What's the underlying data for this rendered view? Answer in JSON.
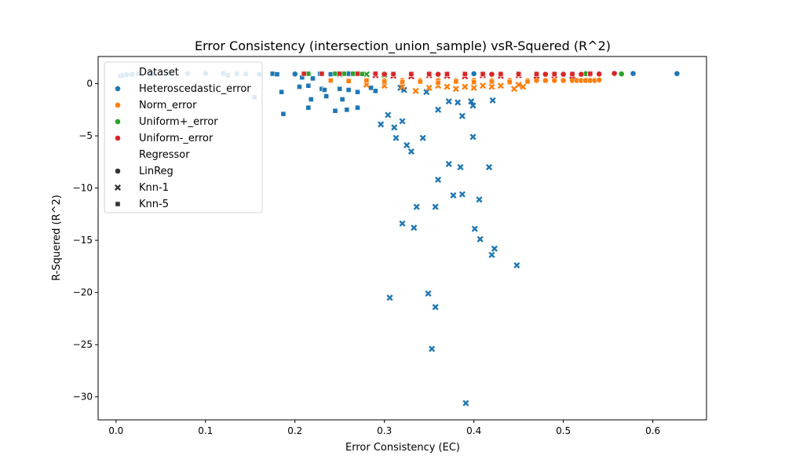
{
  "chart_data": {
    "type": "scatter",
    "title": "Error Consistency (intersection_union_sample) vsR-Squered (R^2)",
    "xlabel": "Error Consistency (EC)",
    "ylabel": "R-Squered (R^2)",
    "xlim": [
      -0.02,
      0.66
    ],
    "ylim": [
      -32.2,
      2.6
    ],
    "xticks": [
      0.0,
      0.1,
      0.2,
      0.3,
      0.4,
      0.5,
      0.6
    ],
    "xtick_labels": [
      "0.0",
      "0.1",
      "0.2",
      "0.3",
      "0.4",
      "0.5",
      "0.6"
    ],
    "yticks": [
      0,
      -5,
      -10,
      -15,
      -20,
      -25,
      -30
    ],
    "ytick_labels": [
      "0",
      "−5",
      "−10",
      "−15",
      "−20",
      "−25",
      "−30"
    ],
    "grid": false,
    "legend": {
      "placement": "upper-left",
      "hue_title": "Dataset",
      "style_title": "Regressor",
      "hue_entries": [
        {
          "label": "Heteroscedastic_error",
          "color": "#1f77b4"
        },
        {
          "label": "Norm_error",
          "color": "#ff7f0e"
        },
        {
          "label": "Uniform+_error",
          "color": "#2ca02c"
        },
        {
          "label": "Uniform-_error",
          "color": "#d62728"
        }
      ],
      "style_entries": [
        {
          "label": "LinReg",
          "marker": "circle"
        },
        {
          "label": "Knn-1",
          "marker": "x"
        },
        {
          "label": "Knn-5",
          "marker": "square"
        }
      ]
    },
    "series": [
      {
        "dataset": "Heteroscedastic_error",
        "regressor": "LinReg",
        "color": "#1f77b4",
        "marker": "circle",
        "points": [
          [
            0.005,
            0.75
          ],
          [
            0.008,
            0.8
          ],
          [
            0.012,
            0.85
          ],
          [
            0.018,
            0.9
          ],
          [
            0.025,
            0.95
          ],
          [
            0.04,
            0.95
          ],
          [
            0.06,
            0.96
          ],
          [
            0.08,
            0.97
          ],
          [
            0.1,
            0.97
          ],
          [
            0.12,
            0.97
          ],
          [
            0.16,
            0.9
          ],
          [
            0.2,
            0.92
          ],
          [
            0.23,
            0.95
          ],
          [
            0.26,
            0.95
          ],
          [
            0.3,
            0.95
          ],
          [
            0.35,
            0.95
          ],
          [
            0.4,
            0.95
          ],
          [
            0.45,
            0.95
          ],
          [
            0.5,
            0.95
          ],
          [
            0.53,
            0.96
          ],
          [
            0.578,
            0.97
          ],
          [
            0.627,
            0.96
          ]
        ]
      },
      {
        "dataset": "Heteroscedastic_error",
        "regressor": "Knn-1",
        "color": "#1f77b4",
        "marker": "x",
        "points": [
          [
            0.296,
            -3.9
          ],
          [
            0.304,
            -3.0
          ],
          [
            0.311,
            -4.2
          ],
          [
            0.313,
            -5.2
          ],
          [
            0.318,
            -0.4
          ],
          [
            0.32,
            -3.6
          ],
          [
            0.322,
            -0.6
          ],
          [
            0.325,
            -5.9
          ],
          [
            0.33,
            -6.5
          ],
          [
            0.336,
            -11.8
          ],
          [
            0.32,
            -13.4
          ],
          [
            0.333,
            -13.8
          ],
          [
            0.306,
            -20.5
          ],
          [
            0.343,
            -5.2
          ],
          [
            0.349,
            -20.1
          ],
          [
            0.347,
            -0.8
          ],
          [
            0.357,
            -21.4
          ],
          [
            0.353,
            -25.4
          ],
          [
            0.357,
            -11.8
          ],
          [
            0.36,
            -9.2
          ],
          [
            0.36,
            -2.5
          ],
          [
            0.372,
            -1.7
          ],
          [
            0.372,
            -7.7
          ],
          [
            0.377,
            -10.7
          ],
          [
            0.382,
            -1.8
          ],
          [
            0.385,
            -8.0
          ],
          [
            0.387,
            -3.1
          ],
          [
            0.387,
            -10.6
          ],
          [
            0.391,
            -30.6
          ],
          [
            0.397,
            -1.7
          ],
          [
            0.399,
            -2.1
          ],
          [
            0.399,
            -5.1
          ],
          [
            0.401,
            -13.9
          ],
          [
            0.406,
            -11.1
          ],
          [
            0.407,
            -14.9
          ],
          [
            0.417,
            -8.0
          ],
          [
            0.421,
            -1.6
          ],
          [
            0.42,
            -16.4
          ],
          [
            0.423,
            -15.8
          ],
          [
            0.448,
            -17.4
          ]
        ]
      },
      {
        "dataset": "Heteroscedastic_error",
        "regressor": "Knn-5",
        "color": "#1f77b4",
        "marker": "square",
        "points": [
          [
            0.125,
            0.8
          ],
          [
            0.135,
            0.95
          ],
          [
            0.145,
            0.92
          ],
          [
            0.155,
            -1.3
          ],
          [
            0.175,
            0.95
          ],
          [
            0.18,
            0.9
          ],
          [
            0.185,
            -0.8
          ],
          [
            0.187,
            -2.9
          ],
          [
            0.205,
            -0.3
          ],
          [
            0.208,
            0.6
          ],
          [
            0.215,
            -0.2
          ],
          [
            0.215,
            -2.3
          ],
          [
            0.218,
            -1.5
          ],
          [
            0.22,
            0.5
          ],
          [
            0.228,
            0.95
          ],
          [
            0.23,
            -0.5
          ],
          [
            0.233,
            -0.6
          ],
          [
            0.235,
            -1.2
          ],
          [
            0.24,
            0.9
          ],
          [
            0.245,
            -2.6
          ],
          [
            0.25,
            -0.5
          ],
          [
            0.253,
            -1.5
          ],
          [
            0.258,
            -2.5
          ],
          [
            0.26,
            -0.6
          ],
          [
            0.265,
            0.9
          ],
          [
            0.27,
            -0.8
          ],
          [
            0.27,
            -2.3
          ],
          [
            0.285,
            -0.4
          ],
          [
            0.29,
            -0.7
          ]
        ]
      },
      {
        "dataset": "Norm_error",
        "regressor": "LinReg",
        "color": "#ff7f0e",
        "marker": "circle",
        "points": [
          [
            0.3,
            0.3
          ],
          [
            0.32,
            0.3
          ],
          [
            0.34,
            0.3
          ],
          [
            0.36,
            0.3
          ],
          [
            0.38,
            0.3
          ],
          [
            0.4,
            0.3
          ],
          [
            0.42,
            0.3
          ],
          [
            0.44,
            0.3
          ],
          [
            0.46,
            0.3
          ],
          [
            0.47,
            0.3
          ],
          [
            0.48,
            0.3
          ],
          [
            0.49,
            0.3
          ],
          [
            0.5,
            0.3
          ],
          [
            0.51,
            0.3
          ],
          [
            0.515,
            0.3
          ],
          [
            0.52,
            0.3
          ],
          [
            0.525,
            0.3
          ],
          [
            0.53,
            0.3
          ],
          [
            0.535,
            0.3
          ],
          [
            0.54,
            0.35
          ]
        ]
      },
      {
        "dataset": "Norm_error",
        "regressor": "Knn-1",
        "color": "#ff7f0e",
        "marker": "x",
        "points": [
          [
            0.28,
            -0.1
          ],
          [
            0.3,
            -0.2
          ],
          [
            0.32,
            -0.3
          ],
          [
            0.335,
            -0.7
          ],
          [
            0.35,
            -0.4
          ],
          [
            0.36,
            -0.2
          ],
          [
            0.37,
            -0.3
          ],
          [
            0.38,
            -0.5
          ],
          [
            0.39,
            -0.3
          ],
          [
            0.4,
            -0.4
          ],
          [
            0.41,
            -0.2
          ],
          [
            0.42,
            -0.3
          ],
          [
            0.43,
            -0.2
          ],
          [
            0.445,
            -0.5
          ],
          [
            0.45,
            -0.1
          ],
          [
            0.455,
            -0.3
          ]
        ]
      },
      {
        "dataset": "Norm_error",
        "regressor": "Knn-5",
        "color": "#ff7f0e",
        "marker": "square",
        "points": [
          [
            0.24,
            0.3
          ],
          [
            0.26,
            0.25
          ],
          [
            0.28,
            0.3
          ],
          [
            0.3,
            0.2
          ],
          [
            0.32,
            0.15
          ],
          [
            0.34,
            0.2
          ],
          [
            0.36,
            0.1
          ],
          [
            0.38,
            0.2
          ],
          [
            0.4,
            0.15
          ],
          [
            0.42,
            0.2
          ],
          [
            0.44,
            0.15
          ],
          [
            0.46,
            0.2
          ]
        ]
      },
      {
        "dataset": "Uniform+_error",
        "regressor": "LinReg",
        "color": "#2ca02c",
        "marker": "circle",
        "points": [
          [
            0.525,
            0.95
          ],
          [
            0.565,
            0.93
          ]
        ]
      },
      {
        "dataset": "Uniform+_error",
        "regressor": "Knn-1",
        "color": "#2ca02c",
        "marker": "x",
        "points": [
          [
            0.25,
            0.9
          ],
          [
            0.28,
            0.9
          ],
          [
            0.3,
            0.85
          ]
        ]
      },
      {
        "dataset": "Uniform+_error",
        "regressor": "Knn-5",
        "color": "#2ca02c",
        "marker": "square",
        "points": [
          [
            0.215,
            0.95
          ],
          [
            0.23,
            0.95
          ],
          [
            0.245,
            0.95
          ],
          [
            0.255,
            0.95
          ],
          [
            0.265,
            0.95
          ],
          [
            0.275,
            0.93
          ]
        ]
      },
      {
        "dataset": "Uniform-_error",
        "regressor": "LinReg",
        "color": "#d62728",
        "marker": "circle",
        "points": [
          [
            0.3,
            0.9
          ],
          [
            0.33,
            0.9
          ],
          [
            0.36,
            0.9
          ],
          [
            0.39,
            0.9
          ],
          [
            0.42,
            0.9
          ],
          [
            0.45,
            0.9
          ],
          [
            0.48,
            0.9
          ],
          [
            0.5,
            0.9
          ],
          [
            0.51,
            0.9
          ],
          [
            0.52,
            0.9
          ],
          [
            0.53,
            0.9
          ],
          [
            0.54,
            0.92
          ],
          [
            0.557,
            0.98
          ]
        ]
      },
      {
        "dataset": "Uniform-_error",
        "regressor": "Knn-1",
        "color": "#d62728",
        "marker": "x",
        "points": [
          [
            0.29,
            0.8
          ],
          [
            0.31,
            0.75
          ],
          [
            0.33,
            0.7
          ],
          [
            0.35,
            0.8
          ],
          [
            0.37,
            0.75
          ],
          [
            0.39,
            0.7
          ],
          [
            0.41,
            0.8
          ],
          [
            0.43,
            0.75
          ],
          [
            0.45,
            0.8
          ],
          [
            0.47,
            0.75
          ],
          [
            0.49,
            0.8
          ],
          [
            0.51,
            0.75
          ]
        ]
      },
      {
        "dataset": "Uniform-_error",
        "regressor": "Knn-5",
        "color": "#d62728",
        "marker": "square",
        "points": [
          [
            0.21,
            0.95
          ],
          [
            0.23,
            0.95
          ],
          [
            0.25,
            0.95
          ],
          [
            0.27,
            0.95
          ],
          [
            0.29,
            0.95
          ],
          [
            0.31,
            0.93
          ],
          [
            0.33,
            0.93
          ],
          [
            0.35,
            0.93
          ],
          [
            0.37,
            0.93
          ],
          [
            0.39,
            0.93
          ],
          [
            0.41,
            0.93
          ],
          [
            0.43,
            0.93
          ],
          [
            0.45,
            0.93
          ],
          [
            0.47,
            0.93
          ],
          [
            0.49,
            0.93
          ],
          [
            0.51,
            0.93
          ],
          [
            0.53,
            0.95
          ]
        ]
      }
    ]
  }
}
